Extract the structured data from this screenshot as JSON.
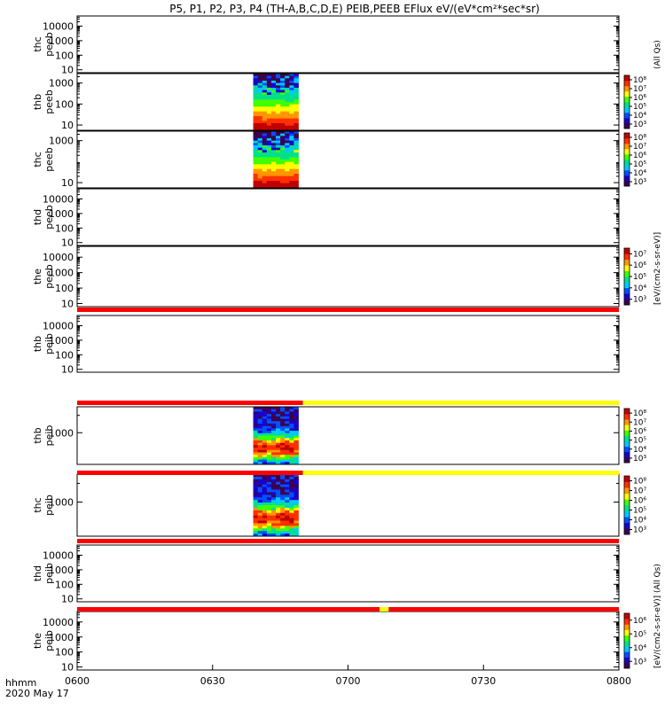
{
  "chart_data": {
    "type": "heatmap",
    "title": "P5, P1, P2, P3, P4 (TH-A,B,C,D,E) PEIB,PEEB EFlux eV/(eV*cm²*sec*sr)",
    "x_axis": {
      "ticks": [
        "0600",
        "0630",
        "0700",
        "0730",
        "0800"
      ],
      "range_minutes": [
        0,
        120
      ],
      "time_label": "hhmm",
      "date_label": "2020 May 17"
    },
    "colorscale": [
      "#3b0050",
      "#1a00c8",
      "#0050ff",
      "#00c8ff",
      "#00e08c",
      "#40ff00",
      "#ffff00",
      "#ff9600",
      "#ff3000",
      "#c00000"
    ],
    "panels": [
      {
        "probe": "thc",
        "product": "peeb",
        "ylabel": "thc\npeeb",
        "yticks": [
          "10",
          "100",
          "1000",
          "10000"
        ],
        "ylog_range": [
          0.8,
          4.7
        ],
        "has_colorbar": false,
        "data_block": false,
        "sidebar_label": ""
      },
      {
        "probe": "thb",
        "product": "peeb",
        "ylabel": "thb\npeeb",
        "yticks": [
          "10",
          "100",
          "1000"
        ],
        "ylog_range": [
          0.75,
          3.45
        ],
        "has_colorbar": true,
        "cbar_ticks": [
          "10³",
          "10⁴",
          "10⁵",
          "10⁶",
          "10⁷",
          "10⁸"
        ],
        "data_block": true,
        "data_start_min": 39,
        "data_end_min": 49,
        "sidebar_label": ""
      },
      {
        "probe": "thc",
        "product": "peeb",
        "ylabel": "thc\npeeb",
        "yticks": [
          "10",
          "1000"
        ],
        "ylog_range": [
          0.75,
          3.45
        ],
        "has_colorbar": true,
        "cbar_ticks": [
          "10³",
          "10⁴",
          "10⁵",
          "10⁶",
          "10⁷",
          "10⁸"
        ],
        "data_block": true,
        "data_start_min": 39,
        "data_end_min": 49,
        "sidebar_label": ""
      },
      {
        "probe": "thd",
        "product": "peeb",
        "ylabel": "thd\npeeb",
        "yticks": [
          "10",
          "100",
          "1000",
          "10000"
        ],
        "ylog_range": [
          0.8,
          4.7
        ],
        "has_colorbar": false,
        "data_block": false,
        "sidebar_label": ""
      },
      {
        "probe": "the",
        "product": "peeb",
        "ylabel": "the\npeeb",
        "yticks": [
          "10",
          "100",
          "1000",
          "10000"
        ],
        "ylog_range": [
          0.8,
          4.7
        ],
        "has_colorbar": true,
        "cbar_ticks": [
          "10³",
          "10⁴",
          "10⁵",
          "10⁶",
          "10⁷"
        ],
        "data_block": false,
        "sidebar_label": "[eV/(cm2-s-sr-eV)]"
      },
      {
        "probe": "thb",
        "product": "peib",
        "ylabel": "thb\npeib",
        "yticks": [
          "10",
          "100",
          "1000",
          "10000"
        ],
        "ylog_range": [
          0.8,
          4.7
        ],
        "has_colorbar": false,
        "data_block": false,
        "sidebar_label": ""
      },
      {
        "probe": "thb",
        "product": "peib",
        "ylabel": "thb\npeib",
        "yticks": [
          "1000"
        ],
        "ylog_range": [
          2.45,
          3.45
        ],
        "has_colorbar": true,
        "cbar_ticks": [
          "10³",
          "10⁴",
          "10⁵",
          "10⁶",
          "10⁷",
          "10⁸"
        ],
        "data_block": true,
        "data_start_min": 39,
        "data_end_min": 49,
        "sidebar_label": ""
      },
      {
        "probe": "thc",
        "product": "peib",
        "ylabel": "thc\npeib",
        "yticks": [
          "1000"
        ],
        "ylog_range": [
          2.45,
          3.45
        ],
        "has_colorbar": true,
        "cbar_ticks": [
          "10³",
          "10⁴",
          "10⁵",
          "10⁶",
          "10⁷",
          "10⁸"
        ],
        "data_block": true,
        "data_start_min": 39,
        "data_end_min": 49,
        "sidebar_label": ""
      },
      {
        "probe": "thd",
        "product": "peib",
        "ylabel": "thd\npeib",
        "yticks": [
          "10",
          "100",
          "1000",
          "10000"
        ],
        "ylog_range": [
          0.8,
          4.7
        ],
        "has_colorbar": false,
        "data_block": false,
        "sidebar_label": ""
      },
      {
        "probe": "the",
        "product": "peib",
        "ylabel": "the\npeib",
        "yticks": [
          "10",
          "100",
          "1000",
          "10000"
        ],
        "ylog_range": [
          0.8,
          4.7
        ],
        "has_colorbar": true,
        "cbar_ticks": [
          "10³",
          "10⁴",
          "10⁵",
          "10⁶"
        ],
        "data_block": false,
        "sidebar_label": "[eV/(cm2-s-sr-eV)] (All Qs)"
      }
    ],
    "sidebar_top_label": "(All Qs)",
    "status_bars": [
      {
        "after_panel": 4,
        "segments": [
          {
            "from_min": 0,
            "to_min": 120,
            "color": "#ff0000"
          }
        ]
      },
      {
        "after_panel": 5,
        "segments": [
          {
            "from_min": 0,
            "to_min": 50,
            "color": "#ff0000"
          },
          {
            "from_min": 50,
            "to_min": 120,
            "color": "#ffff00"
          }
        ]
      },
      {
        "after_panel": 6,
        "segments": [
          {
            "from_min": 0,
            "to_min": 50,
            "color": "#ff0000"
          },
          {
            "from_min": 50,
            "to_min": 120,
            "color": "#ffff00"
          }
        ]
      },
      {
        "after_panel": 7,
        "segments": [
          {
            "from_min": 0,
            "to_min": 120,
            "color": "#ff0000"
          }
        ]
      },
      {
        "after_panel": 8,
        "segments": [
          {
            "from_min": 0,
            "to_min": 67,
            "color": "#ff0000"
          },
          {
            "from_min": 67,
            "to_min": 69,
            "color": "#ffff00"
          },
          {
            "from_min": 69,
            "to_min": 120,
            "color": "#ff0000"
          }
        ]
      }
    ]
  }
}
